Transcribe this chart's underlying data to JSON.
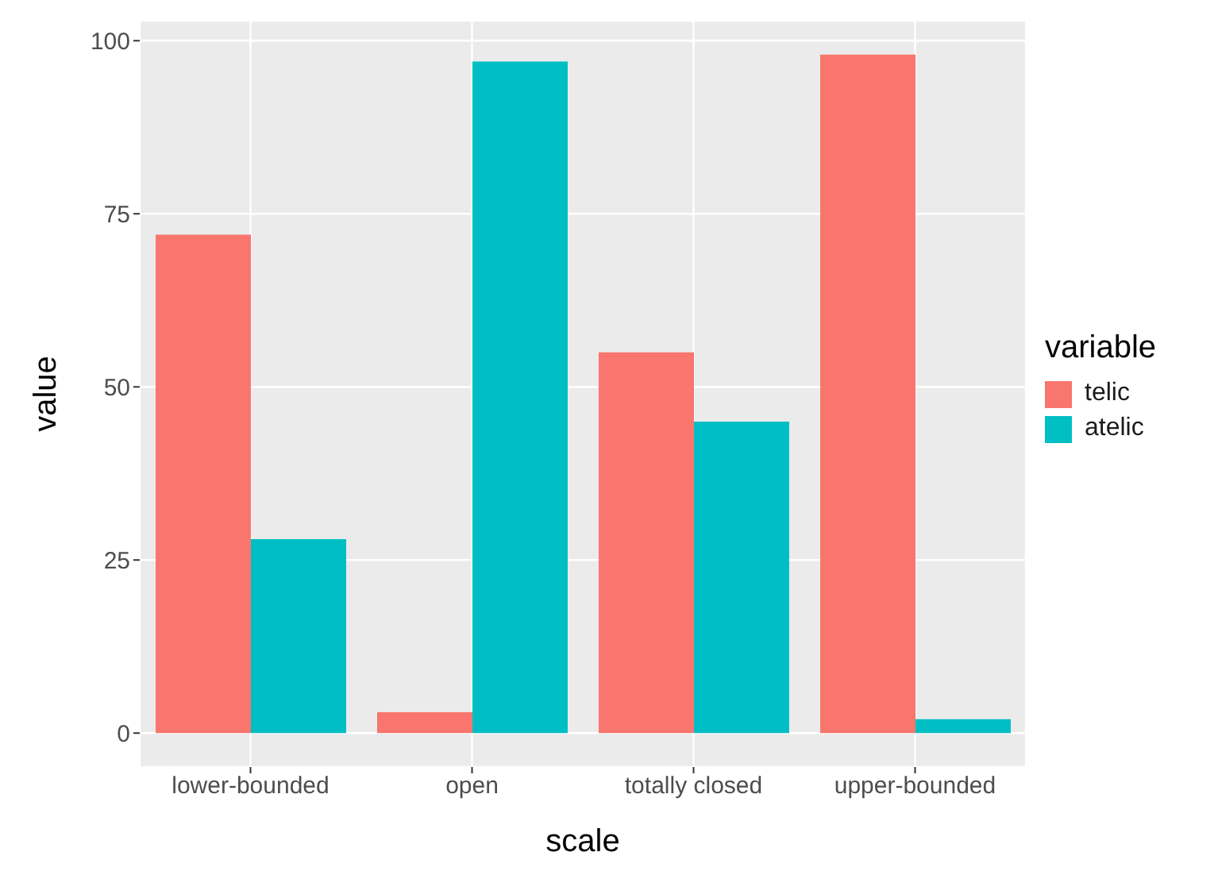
{
  "chart_data": {
    "type": "bar",
    "xlabel": "scale",
    "ylabel": "value",
    "legend_title": "variable",
    "categories": [
      "lower-bounded",
      "open",
      "totally closed",
      "upper-bounded"
    ],
    "series": [
      {
        "name": "telic",
        "color": "#f8766d",
        "values": [
          72,
          3,
          55,
          98
        ]
      },
      {
        "name": "atelic",
        "color": "#00bfc4",
        "values": [
          28,
          97,
          45,
          2
        ]
      }
    ],
    "ylim": [
      -4.9,
      102.9
    ],
    "yticks": [
      0,
      25,
      50,
      75,
      100
    ],
    "grid": true,
    "legend": "right"
  }
}
